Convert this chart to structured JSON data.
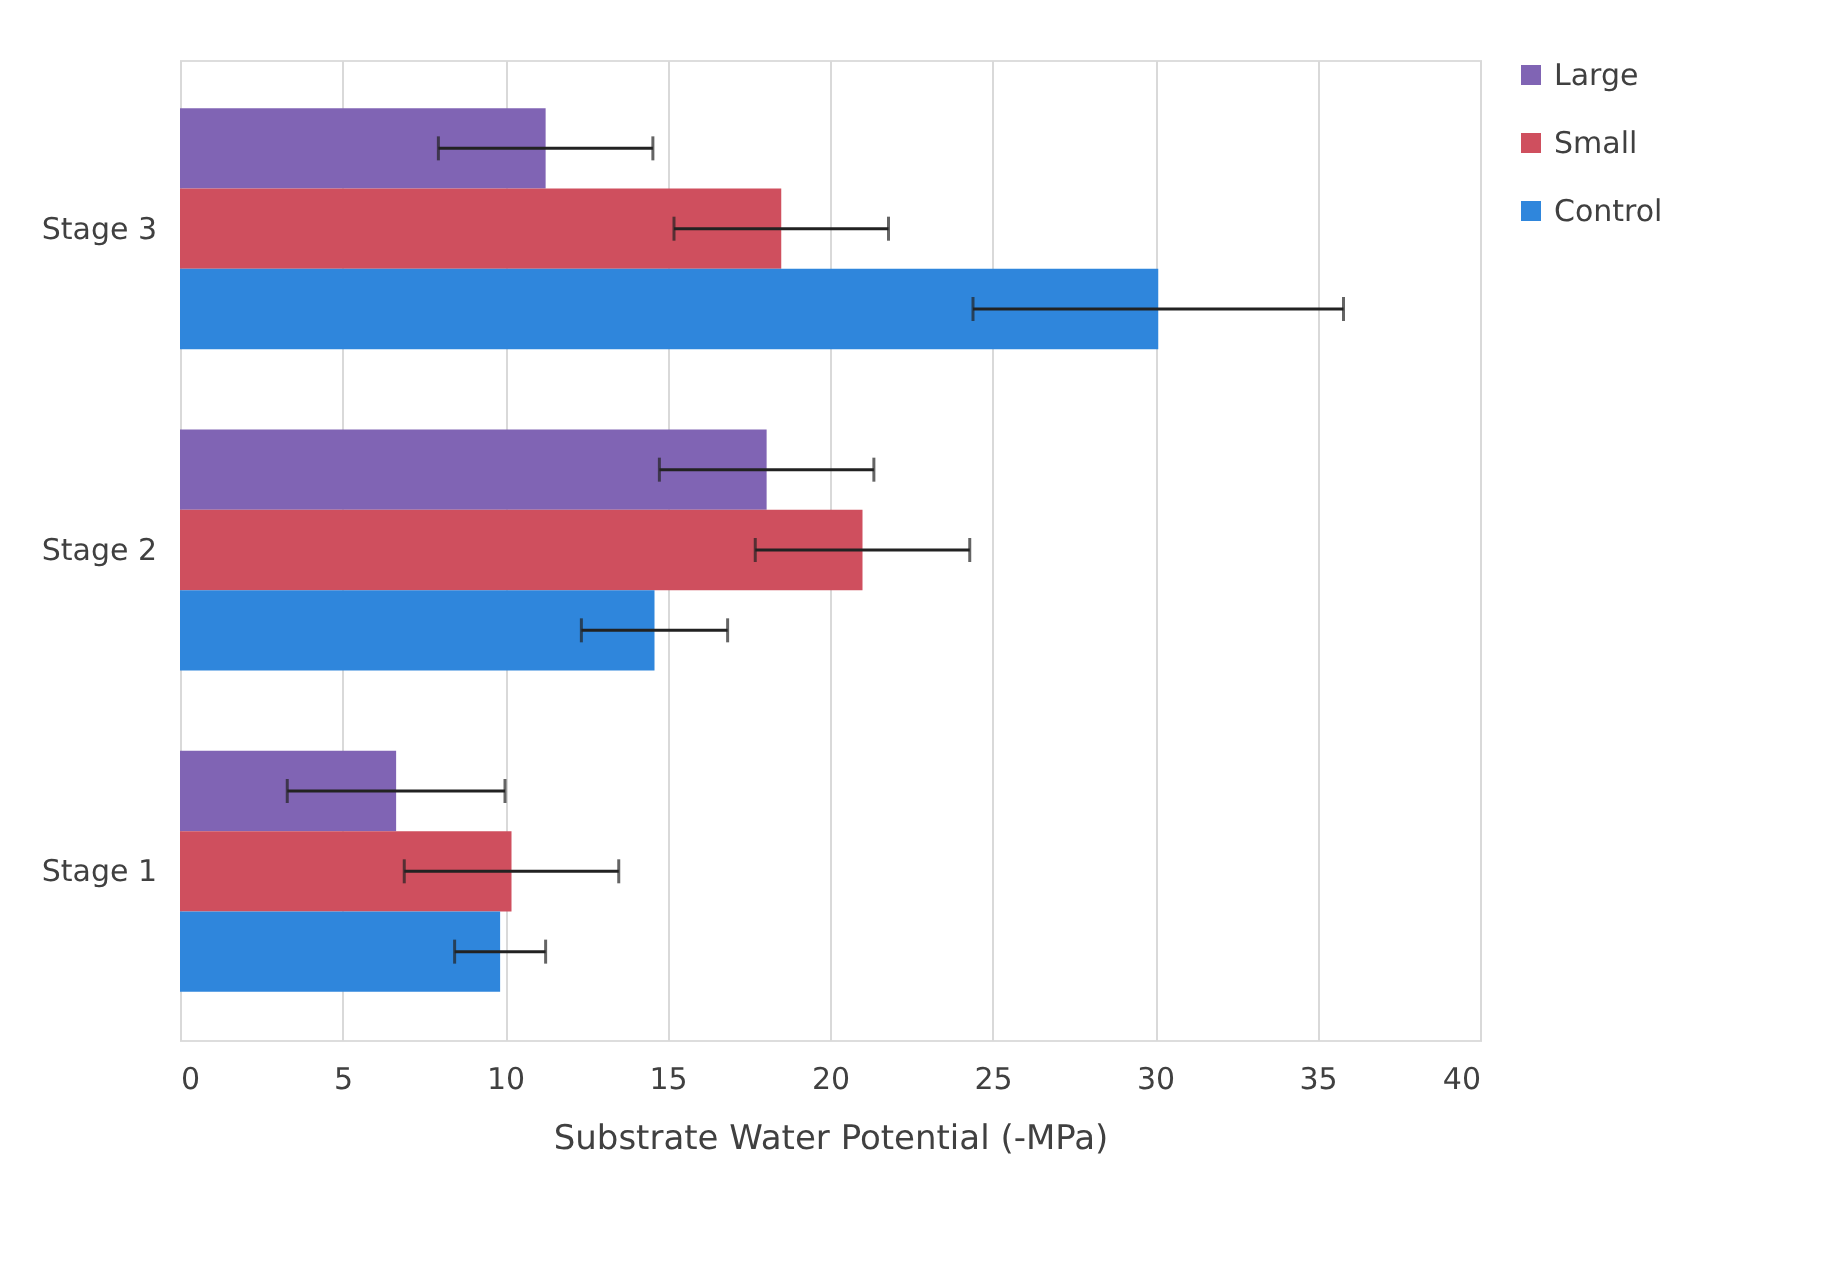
{
  "chart_data": {
    "type": "bar",
    "orientation": "horizontal",
    "xlabel": "Substrate Water Potential (-MPa)",
    "categories": [
      "Stage 3",
      "Stage 2",
      "Stage 1"
    ],
    "series": [
      {
        "name": "Large",
        "color": "#8064b4",
        "values": [
          11.25,
          18.05,
          6.65
        ],
        "errors": [
          3.3,
          3.3,
          3.35
        ]
      },
      {
        "name": "Small",
        "color": "#cf4f5e",
        "values": [
          18.5,
          21.0,
          10.2
        ],
        "errors": [
          3.3,
          3.3,
          3.3
        ]
      },
      {
        "name": "Control",
        "color": "#2f86dc",
        "values": [
          30.1,
          14.6,
          9.85
        ],
        "errors": [
          5.7,
          2.25,
          1.4
        ]
      }
    ],
    "xlim": [
      0,
      40
    ],
    "xticks": [
      0,
      5,
      10,
      15,
      20,
      25,
      30,
      35,
      40
    ],
    "grid": "x",
    "legend": "right"
  }
}
